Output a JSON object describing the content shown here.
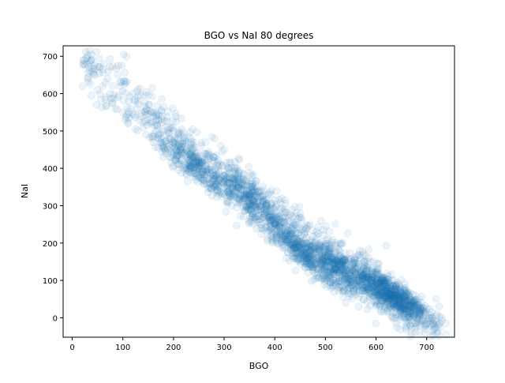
{
  "chart_data": {
    "type": "scatter",
    "title": "BGO vs NaI 80 degrees",
    "xlabel": "BGO",
    "ylabel": "NaI",
    "xlim": [
      -18,
      755
    ],
    "ylim": [
      -52,
      728
    ],
    "xticks": [
      0,
      100,
      200,
      300,
      400,
      500,
      600,
      700
    ],
    "yticks": [
      0,
      100,
      200,
      300,
      400,
      500,
      600,
      700
    ],
    "grid": false,
    "marker": "circle",
    "marker_color": "#1f77b4",
    "marker_alpha": 0.08,
    "n_points_shown": 2600,
    "relationship": "NaI ≈ 710 − 1.05 × BGO (strong negative correlation; densest clusters near BGO≈240/NaI≈410, BGO≈350/NaI≈320, BGO≈450/NaI≈180 and BGO≈620/NaI≈70)",
    "series": [
      {
        "values": [
          [
            22,
            690
          ],
          [
            28,
            695
          ],
          [
            33,
            672
          ],
          [
            40,
            668
          ],
          [
            30,
            640
          ],
          [
            36,
            625
          ],
          [
            45,
            650
          ],
          [
            50,
            610
          ],
          [
            38,
            595
          ],
          [
            55,
            600
          ],
          [
            60,
            620
          ],
          [
            65,
            585
          ],
          [
            48,
            570
          ],
          [
            70,
            640
          ],
          [
            75,
            600
          ],
          [
            80,
            575
          ],
          [
            85,
            560
          ],
          [
            90,
            590
          ],
          [
            95,
            620
          ],
          [
            100,
            550
          ],
          [
            105,
            530
          ],
          [
            110,
            520
          ],
          [
            115,
            560
          ],
          [
            120,
            545
          ],
          [
            125,
            505
          ],
          [
            130,
            580
          ],
          [
            135,
            595
          ],
          [
            140,
            510
          ],
          [
            145,
            490
          ],
          [
            150,
            545
          ],
          [
            155,
            520
          ],
          [
            160,
            470
          ],
          [
            165,
            500
          ],
          [
            170,
            455
          ],
          [
            175,
            480
          ],
          [
            180,
            430
          ],
          [
            185,
            440
          ],
          [
            190,
            510
          ],
          [
            195,
            415
          ],
          [
            200,
            470
          ],
          [
            205,
            525
          ],
          [
            210,
            395
          ],
          [
            215,
            420
          ],
          [
            220,
            400
          ],
          [
            225,
            385
          ],
          [
            230,
            410
          ],
          [
            235,
            405
          ],
          [
            240,
            395
          ],
          [
            245,
            430
          ],
          [
            250,
            375
          ],
          [
            255,
            420
          ],
          [
            260,
            440
          ],
          [
            265,
            360
          ],
          [
            270,
            395
          ],
          [
            275,
            345
          ],
          [
            280,
            380
          ],
          [
            285,
            335
          ],
          [
            290,
            370
          ],
          [
            295,
            325
          ],
          [
            300,
            350
          ],
          [
            305,
            310
          ],
          [
            310,
            340
          ],
          [
            315,
            300
          ],
          [
            320,
            330
          ],
          [
            325,
            295
          ],
          [
            330,
            320
          ],
          [
            335,
            310
          ],
          [
            340,
            285
          ],
          [
            345,
            330
          ],
          [
            350,
            300
          ],
          [
            355,
            270
          ],
          [
            360,
            310
          ],
          [
            365,
            255
          ],
          [
            370,
            290
          ],
          [
            375,
            240
          ],
          [
            380,
            280
          ],
          [
            385,
            230
          ],
          [
            390,
            260
          ],
          [
            395,
            215
          ],
          [
            400,
            250
          ],
          [
            405,
            200
          ],
          [
            410,
            225
          ],
          [
            415,
            195
          ],
          [
            420,
            210
          ],
          [
            425,
            175
          ],
          [
            430,
            200
          ],
          [
            435,
            165
          ],
          [
            440,
            185
          ],
          [
            445,
            160
          ],
          [
            450,
            175
          ],
          [
            455,
            150
          ],
          [
            460,
            185
          ],
          [
            465,
            145
          ],
          [
            470,
            200
          ],
          [
            475,
            135
          ],
          [
            480,
            175
          ],
          [
            485,
            120
          ],
          [
            490,
            160
          ],
          [
            495,
            115
          ],
          [
            500,
            165
          ],
          [
            505,
            105
          ],
          [
            510,
            150
          ],
          [
            515,
            100
          ],
          [
            520,
            145
          ],
          [
            525,
            95
          ],
          [
            530,
            135
          ],
          [
            540,
            120
          ],
          [
            545,
            90
          ],
          [
            550,
            130
          ],
          [
            555,
            100
          ],
          [
            560,
            115
          ],
          [
            565,
            85
          ],
          [
            570,
            120
          ],
          [
            575,
            80
          ],
          [
            580,
            110
          ],
          [
            585,
            75
          ],
          [
            590,
            100
          ],
          [
            595,
            70
          ],
          [
            600,
            95
          ],
          [
            605,
            60
          ],
          [
            610,
            85
          ],
          [
            615,
            55
          ],
          [
            620,
            75
          ],
          [
            625,
            50
          ],
          [
            630,
            70
          ],
          [
            635,
            45
          ],
          [
            640,
            60
          ],
          [
            645,
            40
          ],
          [
            650,
            55
          ],
          [
            655,
            35
          ],
          [
            660,
            45
          ],
          [
            665,
            30
          ],
          [
            670,
            40
          ],
          [
            675,
            25
          ],
          [
            680,
            35
          ],
          [
            690,
            20
          ],
          [
            700,
            25
          ],
          [
            710,
            15
          ],
          [
            720,
            10
          ],
          [
            730,
            0
          ],
          [
            738,
            -15
          ],
          [
            600,
            -15
          ],
          [
            640,
            -15
          ],
          [
            700,
            -15
          ],
          [
            610,
            20
          ],
          [
            595,
            150
          ],
          [
            575,
            170
          ],
          [
            520,
            200
          ],
          [
            470,
            250
          ],
          [
            420,
            290
          ],
          [
            380,
            330
          ],
          [
            330,
            370
          ],
          [
            280,
            430
          ],
          [
            240,
            470
          ],
          [
            200,
            500
          ],
          [
            160,
            540
          ],
          [
            120,
            600
          ],
          [
            90,
            650
          ],
          [
            60,
            665
          ]
        ]
      }
    ]
  }
}
